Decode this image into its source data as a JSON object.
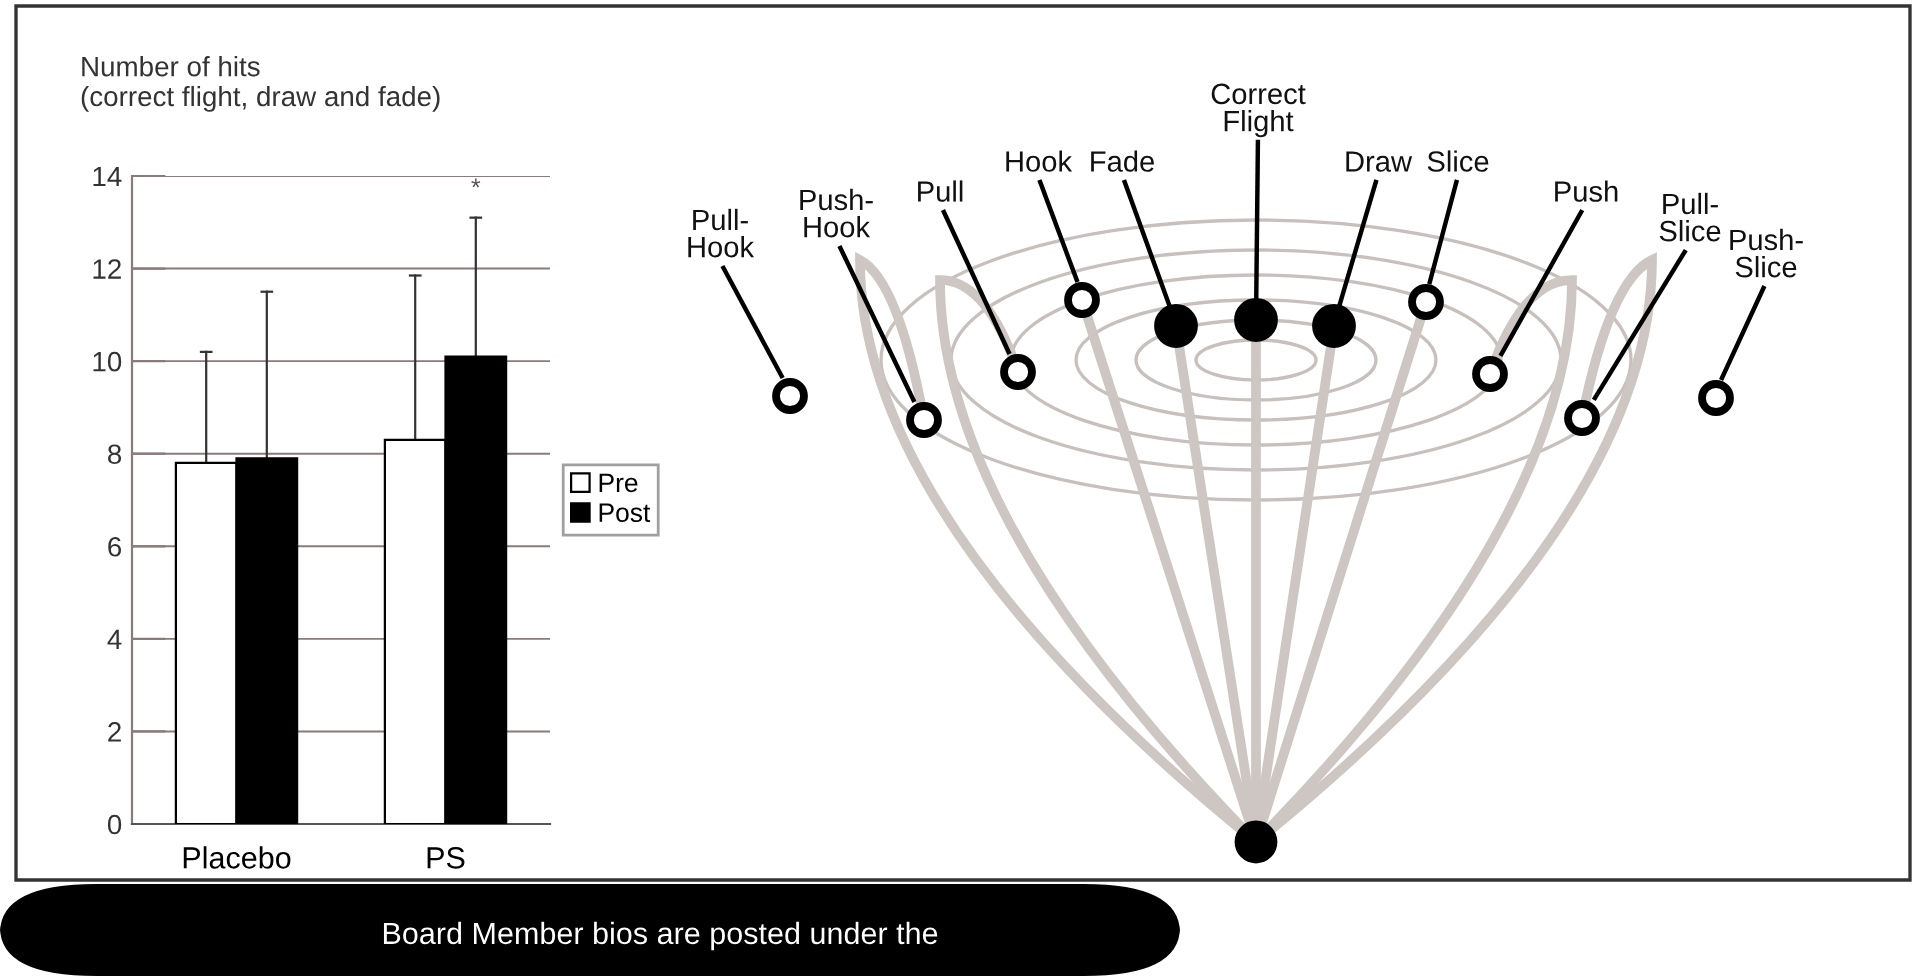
{
  "chart_data": [
    {
      "type": "bar",
      "ylabel": "Number of hits\n(correct flight, draw and fade)",
      "categories": [
        "Placebo",
        "PS"
      ],
      "series": [
        {
          "name": "Pre",
          "color": "#ffffff",
          "values": [
            7.8,
            8.3
          ],
          "errors": [
            [
              7.8,
              10.2
            ],
            [
              8.3,
              11.85
            ]
          ]
        },
        {
          "name": "Post",
          "color": "#000000",
          "values": [
            7.9,
            10.1
          ],
          "errors": [
            [
              7.9,
              11.5
            ],
            [
              10.1,
              13.1
            ]
          ]
        }
      ],
      "ylim": [
        0,
        14
      ],
      "yticks": [
        0,
        2,
        4,
        6,
        8,
        10,
        12,
        14
      ],
      "grid": "y",
      "legend": "right",
      "annotations": [
        "*",
        "Board Member bios are posted under the"
      ]
    },
    {
      "type": "other",
      "annotations": [
        "Pull-\nHook",
        "Push-\nHook",
        "Pull",
        "Hook",
        "Fade",
        "Correct\nFlight",
        "Draw",
        "Slice",
        "Push",
        "Pull-\nSlice",
        "Push-\nSlice"
      ]
    }
  ]
}
